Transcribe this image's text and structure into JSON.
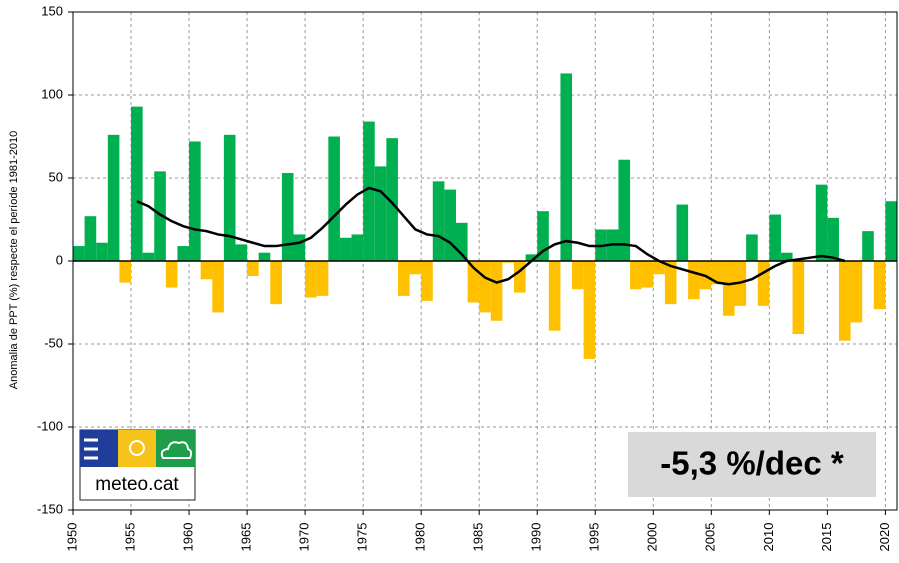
{
  "chart_data": {
    "type": "bar",
    "ylabel": "Anomalia de PPT (%) respecte el període 1981-2010",
    "x": [
      1950,
      1951,
      1952,
      1953,
      1954,
      1955,
      1956,
      1957,
      1958,
      1959,
      1960,
      1961,
      1962,
      1963,
      1964,
      1965,
      1966,
      1967,
      1968,
      1969,
      1970,
      1971,
      1972,
      1973,
      1974,
      1975,
      1976,
      1977,
      1978,
      1979,
      1980,
      1981,
      1982,
      1983,
      1984,
      1985,
      1986,
      1987,
      1988,
      1989,
      1990,
      1991,
      1992,
      1993,
      1994,
      1995,
      1996,
      1997,
      1998,
      1999,
      2000,
      2001,
      2002,
      2003,
      2004,
      2005,
      2006,
      2007,
      2008,
      2009,
      2010,
      2011,
      2012,
      2013,
      2014,
      2015,
      2016,
      2017,
      2018,
      2019,
      2020
    ],
    "values": [
      9,
      27,
      11,
      76,
      -13,
      93,
      5,
      54,
      -16,
      9,
      72,
      -11,
      -31,
      76,
      10,
      -9,
      5,
      -26,
      53,
      16,
      -22,
      -21,
      75,
      14,
      16,
      84,
      57,
      74,
      -21,
      -8,
      -24,
      48,
      43,
      23,
      -25,
      -31,
      -36,
      -1,
      -19,
      4,
      30,
      -42,
      113,
      -17,
      -59,
      19,
      19,
      61,
      -17,
      -16,
      -8,
      -26,
      34,
      -23,
      -17,
      -14,
      -33,
      -27,
      16,
      -27,
      28,
      5,
      -44,
      0,
      46,
      26,
      -48,
      -37,
      18,
      -29,
      36
    ],
    "positive_color": "#00b050",
    "negative_color": "#ffc000",
    "smooth": {
      "color": "#000000",
      "x": [
        1955,
        1956,
        1957,
        1958,
        1959,
        1960,
        1961,
        1962,
        1963,
        1964,
        1965,
        1966,
        1967,
        1968,
        1969,
        1970,
        1971,
        1972,
        1973,
        1974,
        1975,
        1976,
        1977,
        1978,
        1979,
        1980,
        1981,
        1982,
        1983,
        1984,
        1985,
        1986,
        1987,
        1988,
        1989,
        1990,
        1991,
        1992,
        1993,
        1994,
        1995,
        1996,
        1997,
        1998,
        1999,
        2000,
        2001,
        2002,
        2003,
        2004,
        2005,
        2006,
        2007,
        2008,
        2009,
        2010,
        2011,
        2012,
        2013,
        2014,
        2015,
        2016
      ],
      "values": [
        36,
        33,
        28,
        24,
        21,
        19,
        18,
        16,
        15,
        13,
        11,
        9,
        9,
        10,
        11,
        14,
        20,
        27,
        34,
        40,
        44,
        42,
        35,
        27,
        19,
        16,
        15,
        11,
        4,
        -4,
        -10,
        -13,
        -11,
        -6,
        0,
        6,
        10,
        12,
        11,
        9,
        9,
        10,
        10,
        9,
        4,
        0,
        -3,
        -5,
        -7,
        -9,
        -13,
        -14,
        -13,
        -11,
        -7,
        -3,
        0,
        1,
        2,
        3,
        2,
        0
      ]
    },
    "xlim": [
      1950,
      2021
    ],
    "xticks": [
      1950,
      1955,
      1960,
      1965,
      1970,
      1975,
      1980,
      1985,
      1990,
      1995,
      2000,
      2005,
      2010,
      2015,
      2020
    ],
    "ylim": [
      -150,
      150
    ],
    "yticks": [
      -150,
      -100,
      -50,
      0,
      50,
      100,
      150
    ],
    "grid": true,
    "annotation": "-5,3 %/dec *",
    "logo": "meteo.cat"
  }
}
